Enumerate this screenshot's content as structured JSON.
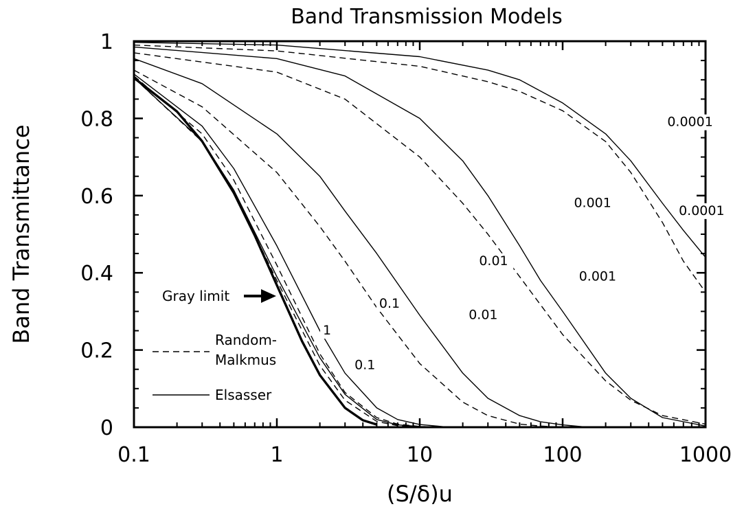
{
  "chart_data": {
    "type": "line",
    "title": "Band Transmission Models",
    "xlabel": "(S/δ)u",
    "ylabel": "Band Transmittance",
    "xscale": "log",
    "xlim": [
      0.1,
      1000
    ],
    "ylim": [
      0,
      1
    ],
    "xticks": [
      "0.1",
      "1",
      "10",
      "100",
      "1000"
    ],
    "yticks": [
      "0",
      "0.2",
      "0.4",
      "0.6",
      "0.8",
      "1"
    ],
    "grid": false,
    "legend": {
      "placement": "bottom-left",
      "entries": [
        {
          "label": "Random-\nMalkmus",
          "label_line1": "Random-",
          "label_line2": "Malkmus",
          "style": "dashed"
        },
        {
          "label": "Elsasser",
          "style": "solid"
        }
      ]
    },
    "annotation": {
      "text": "Gray limit",
      "arrow": true
    },
    "series": [
      {
        "model": "Gray",
        "param": "",
        "style": "bold",
        "x": [
          0.1,
          0.2,
          0.3,
          0.5,
          0.7,
          1,
          1.5,
          2,
          3,
          4,
          5
        ],
        "y": [
          0.905,
          0.818,
          0.741,
          0.607,
          0.497,
          0.368,
          0.223,
          0.135,
          0.05,
          0.018,
          0.007
        ]
      },
      {
        "model": "Elsasser",
        "param": "1",
        "style": "solid",
        "x": [
          0.1,
          0.3,
          0.5,
          1,
          2,
          3,
          5,
          7,
          10,
          15
        ],
        "y": [
          0.905,
          0.742,
          0.614,
          0.39,
          0.18,
          0.085,
          0.02,
          0.006,
          0.002,
          0.0
        ]
      },
      {
        "model": "Random-Malkmus",
        "param": "1",
        "style": "dashed",
        "x": [
          0.1,
          0.3,
          0.5,
          1,
          2,
          3,
          5,
          7,
          10
        ],
        "y": [
          0.905,
          0.74,
          0.61,
          0.38,
          0.16,
          0.07,
          0.015,
          0.004,
          0.0
        ]
      },
      {
        "model": "Elsasser",
        "param": "0.1",
        "style": "solid",
        "x": [
          0.1,
          0.3,
          0.5,
          1,
          2,
          3,
          5,
          7,
          10,
          15,
          20
        ],
        "y": [
          0.915,
          0.78,
          0.67,
          0.47,
          0.25,
          0.14,
          0.05,
          0.02,
          0.007,
          0.001,
          0.0
        ]
      },
      {
        "model": "Random-Malkmus",
        "param": "0.1",
        "style": "dashed",
        "x": [
          0.1,
          0.3,
          0.5,
          1,
          2,
          3,
          5,
          7,
          10,
          15
        ],
        "y": [
          0.91,
          0.76,
          0.64,
          0.42,
          0.19,
          0.09,
          0.025,
          0.008,
          0.002,
          0.0
        ]
      },
      {
        "model": "Elsasser",
        "param": "0.01",
        "style": "solid",
        "x": [
          0.1,
          0.3,
          1,
          2,
          3,
          5,
          10,
          20,
          30,
          50,
          70,
          100,
          150
        ],
        "y": [
          0.955,
          0.89,
          0.76,
          0.65,
          0.56,
          0.45,
          0.29,
          0.14,
          0.075,
          0.03,
          0.014,
          0.006,
          0.0
        ]
      },
      {
        "model": "Random-Malkmus",
        "param": "0.01",
        "style": "dashed",
        "x": [
          0.1,
          0.3,
          1,
          2,
          3,
          5,
          10,
          20,
          30,
          50,
          70,
          100
        ],
        "y": [
          0.925,
          0.83,
          0.66,
          0.52,
          0.43,
          0.31,
          0.165,
          0.065,
          0.03,
          0.008,
          0.003,
          0.0
        ]
      },
      {
        "model": "Elsasser",
        "param": "0.001",
        "style": "solid",
        "x": [
          0.1,
          1,
          3,
          10,
          20,
          30,
          50,
          70,
          100,
          200,
          300,
          500,
          1000
        ],
        "y": [
          0.985,
          0.955,
          0.91,
          0.8,
          0.69,
          0.6,
          0.47,
          0.38,
          0.3,
          0.14,
          0.075,
          0.025,
          0.003
        ]
      },
      {
        "model": "Random-Malkmus",
        "param": "0.001",
        "style": "dashed",
        "x": [
          0.1,
          1,
          3,
          10,
          20,
          30,
          50,
          100,
          200,
          300,
          500,
          1000
        ],
        "y": [
          0.97,
          0.92,
          0.85,
          0.7,
          0.58,
          0.5,
          0.39,
          0.24,
          0.12,
          0.07,
          0.03,
          0.008
        ]
      },
      {
        "model": "Elsasser",
        "param": "0.0001",
        "style": "solid",
        "x": [
          0.1,
          1,
          10,
          30,
          50,
          100,
          200,
          300,
          500,
          700,
          1000
        ],
        "y": [
          0.997,
          0.99,
          0.96,
          0.925,
          0.9,
          0.84,
          0.76,
          0.69,
          0.58,
          0.51,
          0.44
        ]
      },
      {
        "model": "Random-Malkmus",
        "param": "0.0001",
        "style": "dashed",
        "x": [
          0.1,
          1,
          10,
          30,
          50,
          100,
          200,
          300,
          500,
          700,
          1000
        ],
        "y": [
          0.99,
          0.975,
          0.935,
          0.895,
          0.87,
          0.82,
          0.74,
          0.66,
          0.53,
          0.43,
          0.35
        ]
      }
    ],
    "curve_labels": [
      {
        "text": "0.0001",
        "x": 540,
        "y": 0.78
      },
      {
        "text": "0.0001",
        "x": 650,
        "y": 0.55
      },
      {
        "text": "0.001",
        "x": 120,
        "y": 0.57
      },
      {
        "text": "0.001",
        "x": 130,
        "y": 0.38
      },
      {
        "text": "0.01",
        "x": 26,
        "y": 0.42
      },
      {
        "text": "0.01",
        "x": 22,
        "y": 0.28
      },
      {
        "text": "0.1",
        "x": 5.2,
        "y": 0.31
      },
      {
        "text": "0.1",
        "x": 3.5,
        "y": 0.15
      },
      {
        "text": "1",
        "x": 2.1,
        "y": 0.24
      }
    ]
  }
}
